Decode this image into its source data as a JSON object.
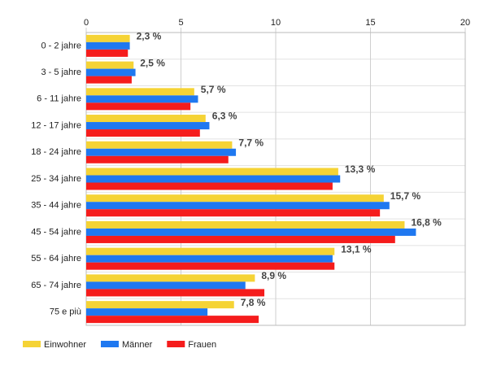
{
  "chart_data": {
    "type": "bar",
    "orientation": "horizontal",
    "categories": [
      "0 - 2 jahre",
      "3 - 5 jahre",
      "6 - 11 jahre",
      "12 - 17 jahre",
      "18 - 24 jahre",
      "25 - 34 jahre",
      "35 - 44 jahre",
      "45 - 54 jahre",
      "55 - 64 jahre",
      "65 - 74 jahre",
      "75 e più"
    ],
    "series": [
      {
        "name": "Einwohner",
        "color": "#f5d335",
        "values": [
          2.3,
          2.5,
          5.7,
          6.3,
          7.7,
          13.3,
          15.7,
          16.8,
          13.1,
          8.9,
          7.8
        ],
        "value_labels": [
          "2,3 %",
          "2,5 %",
          "5,7 %",
          "6,3 %",
          "7,7 %",
          "13,3 %",
          "15,7 %",
          "16,8 %",
          "13,1 %",
          "8,9 %",
          "7,8 %"
        ]
      },
      {
        "name": "Männer",
        "color": "#1f78f0",
        "values": [
          2.3,
          2.6,
          5.9,
          6.5,
          7.9,
          13.4,
          16.0,
          17.4,
          13.0,
          8.4,
          6.4
        ]
      },
      {
        "name": "Frauen",
        "color": "#f51c1c",
        "values": [
          2.2,
          2.4,
          5.5,
          6.0,
          7.5,
          13.0,
          15.5,
          16.3,
          13.1,
          9.4,
          9.1
        ]
      }
    ],
    "xlim": [
      0,
      20
    ],
    "xticks": [
      0,
      5,
      10,
      15,
      20
    ],
    "grid": true,
    "legend": "bottom-left"
  }
}
